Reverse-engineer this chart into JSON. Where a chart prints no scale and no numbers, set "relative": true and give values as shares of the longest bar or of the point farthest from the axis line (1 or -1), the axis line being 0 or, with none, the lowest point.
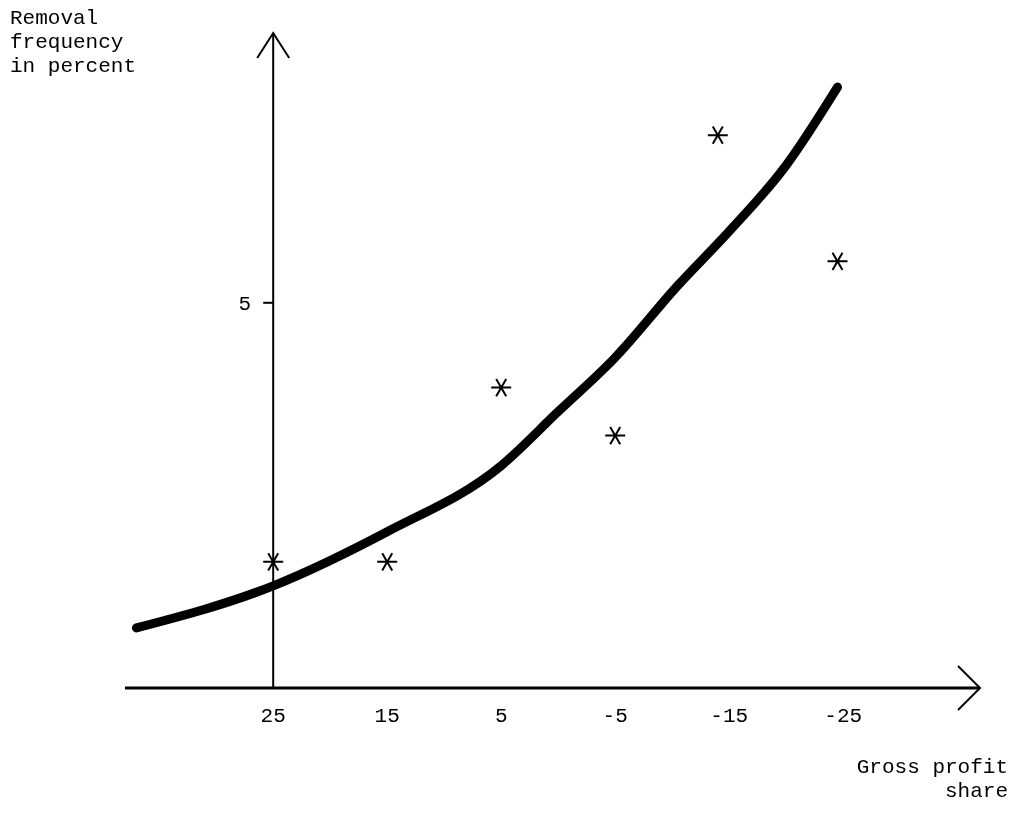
{
  "chart_data": {
    "type": "scatter",
    "xlabel": "Gross profit\nshare",
    "ylabel": "Removal\nfrequency\nin percent",
    "xlim": [
      38,
      -37
    ],
    "xticks": [
      25,
      15,
      5,
      -5,
      -15,
      -25
    ],
    "relative": true,
    "annotations": [
      "5"
    ],
    "series": [
      {
        "color": "#000000",
        "marker": "cross",
        "x": [
          25,
          15,
          5,
          -5,
          -14,
          -24.5
        ],
        "values": [
          0.21,
          0.21,
          0.5,
          0.42,
          0.92,
          0.71
        ]
      },
      {
        "type": "line",
        "color": "#000000",
        "line_style": "solid",
        "marker": "none",
        "x": [
          37,
          25,
          15,
          5,
          0,
          -5,
          -10.5,
          -15,
          -20,
          -24.5
        ],
        "values": [
          0.1,
          0.17,
          0.26,
          0.37,
          0.46,
          0.55,
          0.67,
          0.76,
          0.87,
          1
        ]
      }
    ]
  }
}
